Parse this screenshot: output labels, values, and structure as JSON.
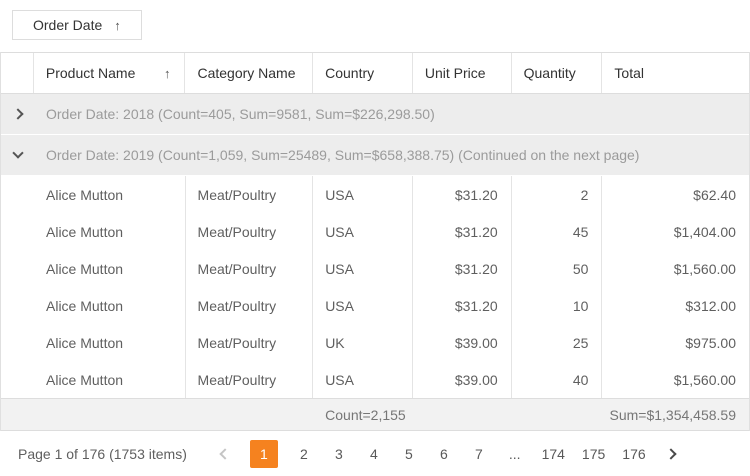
{
  "group_panel": {
    "chip_label": "Order Date",
    "sort_icon": "↑"
  },
  "grid": {
    "columns": {
      "product": {
        "label": "Product Name",
        "sort_icon": "↑"
      },
      "category": {
        "label": "Category Name"
      },
      "country": {
        "label": "Country"
      },
      "unit_price": {
        "label": "Unit Price"
      },
      "quantity": {
        "label": "Quantity"
      },
      "total": {
        "label": "Total"
      }
    },
    "groups": [
      {
        "state": "collapsed",
        "label": "Order Date: 2018 (Count=405, Sum=9581, Sum=$226,298.50)"
      },
      {
        "state": "expanded",
        "label": "Order Date: 2019 (Count=1,059, Sum=25489, Sum=$658,388.75) (Continued on the next page)"
      }
    ],
    "rows": [
      {
        "product": "Alice Mutton",
        "category": "Meat/Poultry",
        "country": "USA",
        "unit_price": "$31.20",
        "quantity": "2",
        "total": "$62.40"
      },
      {
        "product": "Alice Mutton",
        "category": "Meat/Poultry",
        "country": "USA",
        "unit_price": "$31.20",
        "quantity": "45",
        "total": "$1,404.00"
      },
      {
        "product": "Alice Mutton",
        "category": "Meat/Poultry",
        "country": "USA",
        "unit_price": "$31.20",
        "quantity": "50",
        "total": "$1,560.00"
      },
      {
        "product": "Alice Mutton",
        "category": "Meat/Poultry",
        "country": "USA",
        "unit_price": "$31.20",
        "quantity": "10",
        "total": "$312.00"
      },
      {
        "product": "Alice Mutton",
        "category": "Meat/Poultry",
        "country": "UK",
        "unit_price": "$39.00",
        "quantity": "25",
        "total": "$975.00"
      },
      {
        "product": "Alice Mutton",
        "category": "Meat/Poultry",
        "country": "USA",
        "unit_price": "$39.00",
        "quantity": "40",
        "total": "$1,560.00"
      }
    ],
    "footer": {
      "count": "Count=2,155",
      "sum": "Sum=$1,354,458.59"
    }
  },
  "pager": {
    "info": "Page 1 of 176 (1753 items)",
    "current_page": "1",
    "pages": [
      "1",
      "2",
      "3",
      "4",
      "5",
      "6",
      "7"
    ],
    "ellipsis": "...",
    "pages_end": [
      "174",
      "175",
      "176"
    ]
  },
  "icons": {
    "group_collapsed": "chevron-right-icon",
    "group_expanded": "chevron-down-icon",
    "pager_prev": "chevron-left-icon",
    "pager_next": "chevron-right-icon",
    "sort_ascending": "arrow-up-icon"
  },
  "colors": {
    "accent": "#F5821F",
    "group_row_bg": "#EDEDED",
    "footer_bg": "#F2F2F2",
    "border": "#DDDDDD",
    "header_text": "#333333",
    "data_text": "#5F5F5F",
    "group_text": "#9B9B9B"
  }
}
